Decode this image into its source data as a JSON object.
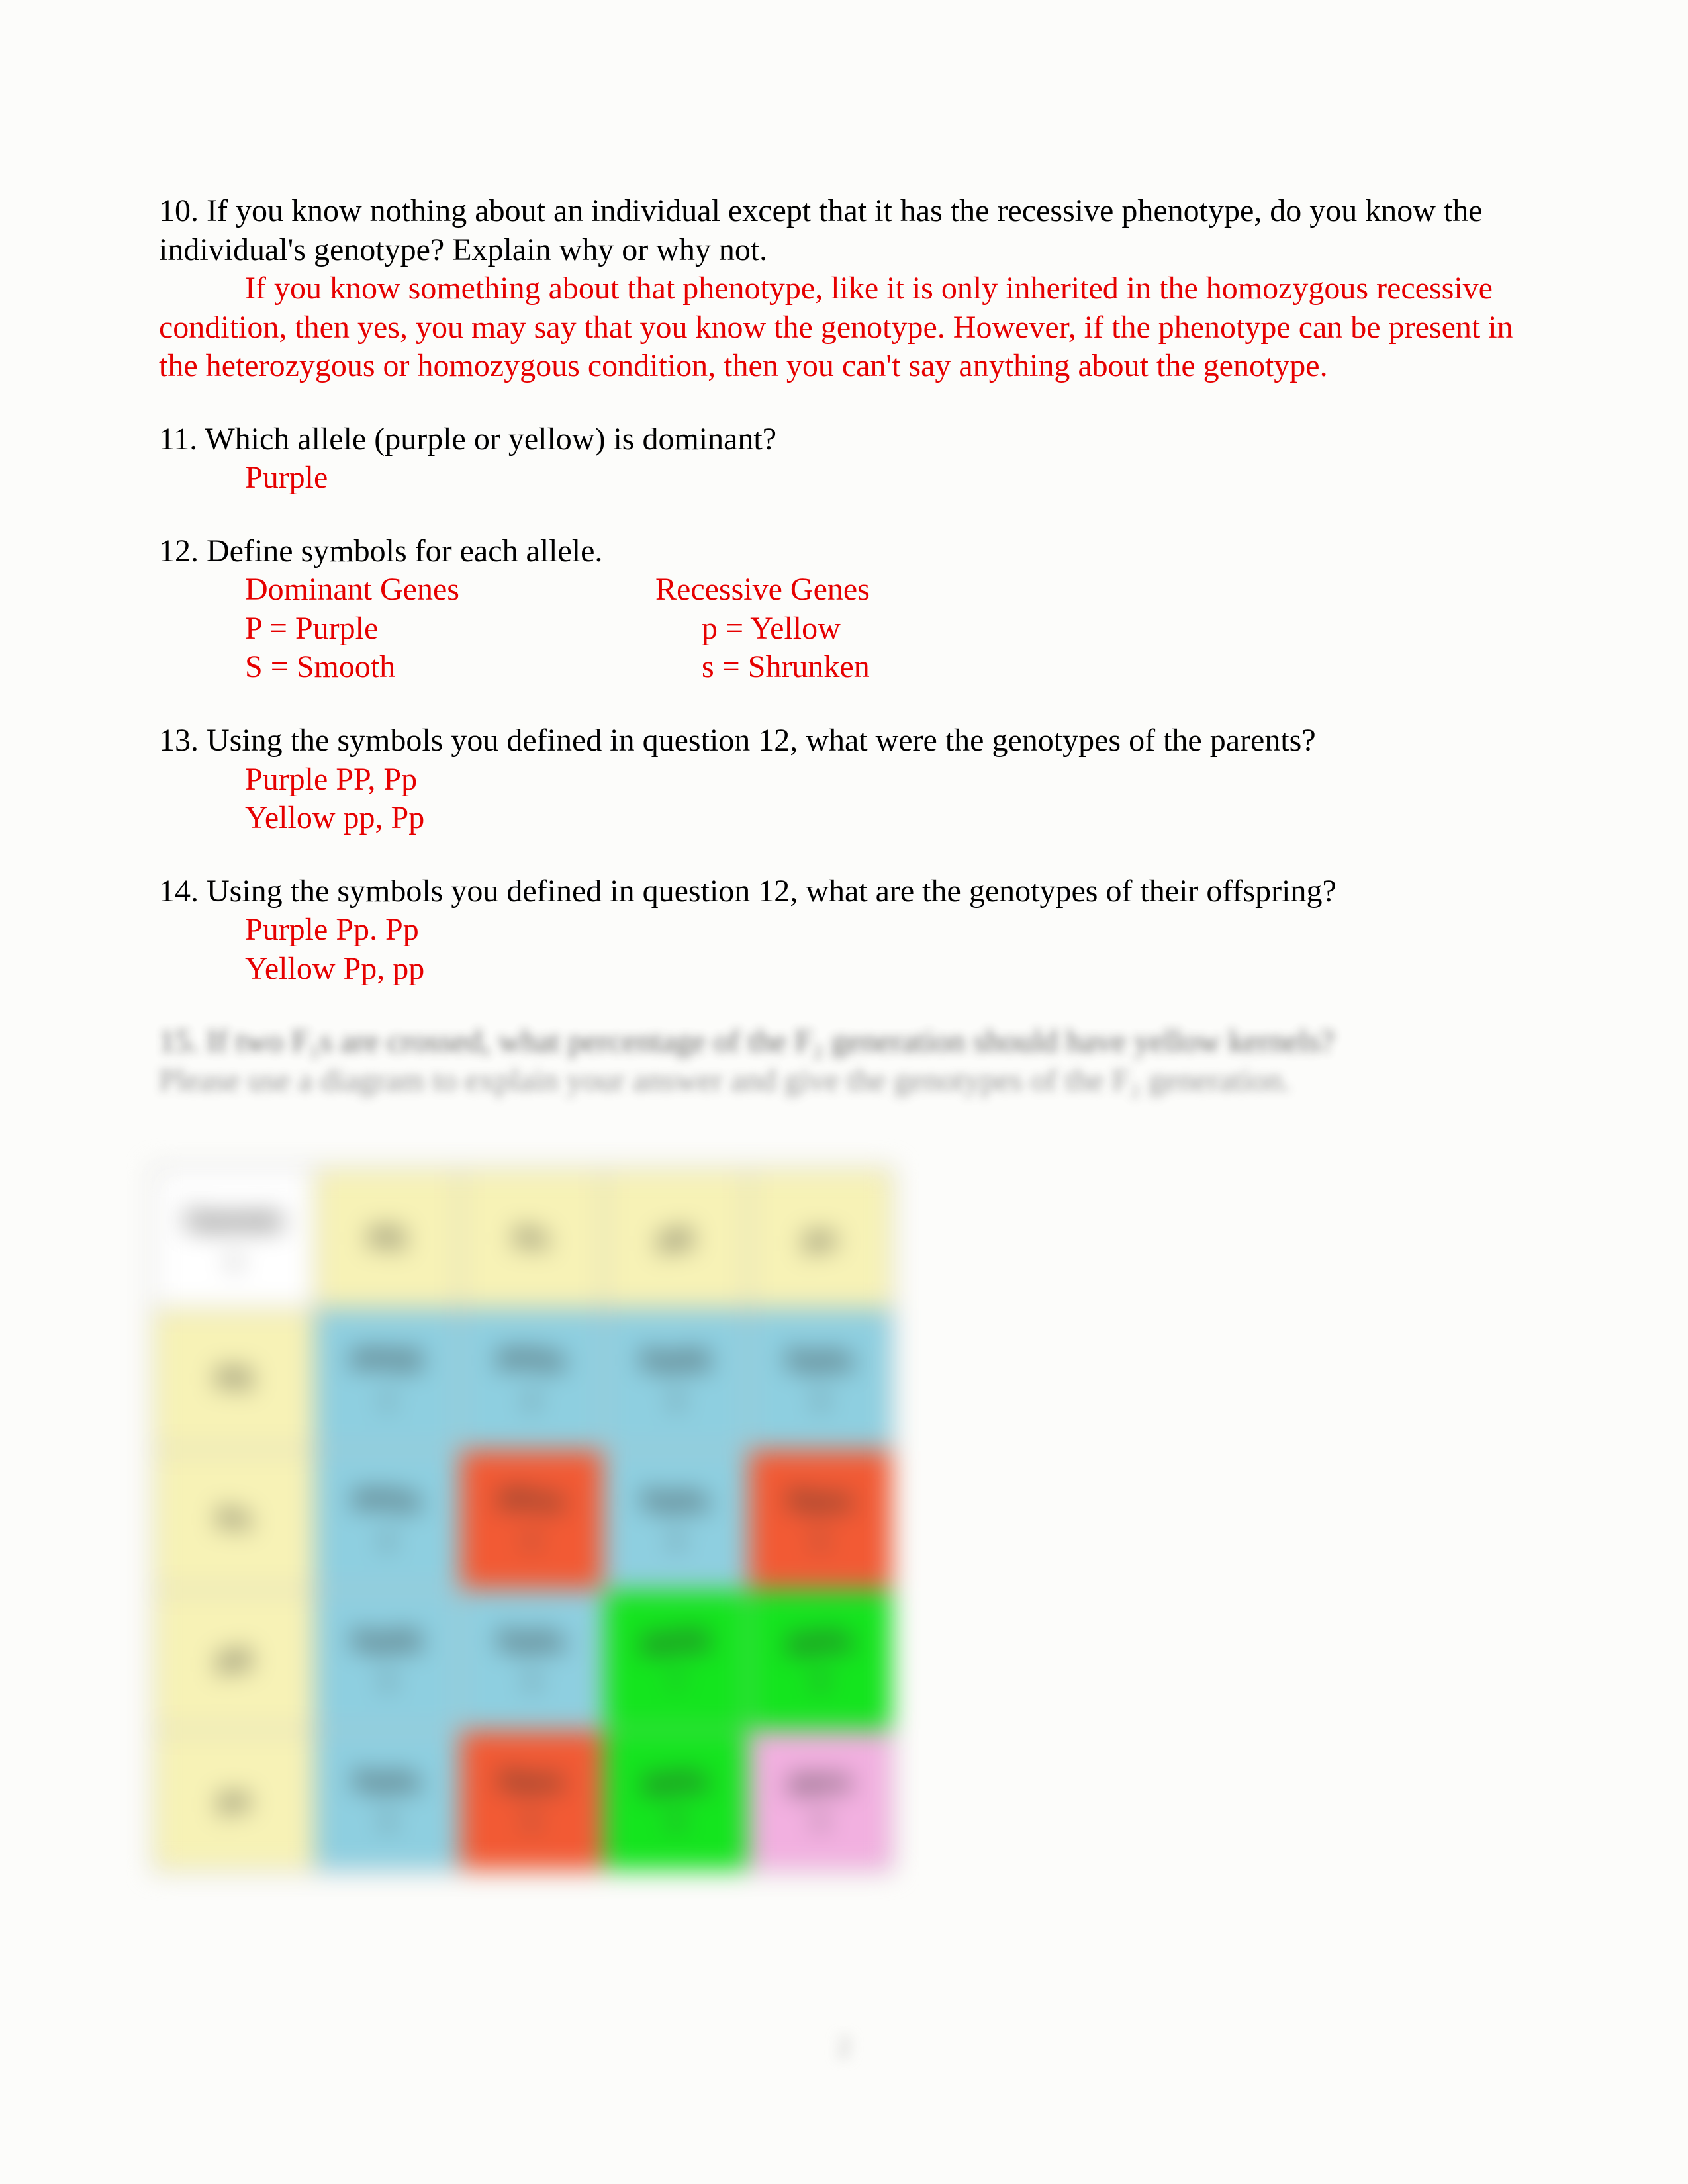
{
  "q10": {
    "text": "10.  If you know nothing about an individual except that it has the recessive phenotype, do you know the individual's genotype?  Explain why or why not.",
    "answer": "If you know something about that phenotype, like it is only inherited in the homozygous recessive condition, then yes, you may say that you know the genotype. However, if the phenotype can be present in the heterozygous or homozygous condition, then you can't say anything about the genotype."
  },
  "q11": {
    "text": "11.  Which allele (purple or yellow) is dominant?",
    "answer": "Purple"
  },
  "q12": {
    "text": "12.  Define symbols for each allele.",
    "domHeader": "Dominant Genes",
    "recHeader": "Recessive Genes",
    "dom1": "P = Purple",
    "dom2": "S = Smooth",
    "rec1": "p = Yellow",
    "rec2": "s = Shrunken"
  },
  "q13": {
    "text": "13.  Using the symbols you defined in question 12, what were the genotypes of the parents?",
    "a1": "Purple PP, Pp",
    "a2": "Yellow pp, Pp"
  },
  "q14": {
    "text": "14.  Using the symbols you defined in question 12, what are the genotypes of their offspring?",
    "a1": "Purple Pp. Pp",
    "a2": "Yellow Pp, pp"
  },
  "q15": {
    "line1": "15. If two F₁s are crossed, what percentage of the F₂ generation should have yellow kernels?",
    "line2": "Please use a diagram to explain your answer and give the genotypes of the F₂ generation."
  },
  "footer": "2",
  "punnett": {
    "colors": {
      "white": "#ffffff",
      "yellow": "#f7f2b6",
      "blue": "#8ecfe0",
      "red": "#f25a34",
      "green": "#14e51e",
      "pink": "#f2b0e0"
    },
    "header": {
      "label": "Gamete",
      "sub": "s"
    },
    "colHeads": [
      {
        "label": "PS",
        "sub": ""
      },
      {
        "label": "Ps",
        "sub": ""
      },
      {
        "label": "pS",
        "sub": ""
      },
      {
        "label": "ps",
        "sub": ""
      }
    ],
    "rows": [
      {
        "head": {
          "label": "PS",
          "sub": ""
        },
        "cells": [
          {
            "label": "PPSS",
            "sub": "1",
            "color": "blue"
          },
          {
            "label": "PPSs",
            "sub": "2",
            "color": "blue"
          },
          {
            "label": "PpSS",
            "sub": "3",
            "color": "blue"
          },
          {
            "label": "PpSs",
            "sub": "4",
            "color": "blue"
          }
        ]
      },
      {
        "head": {
          "label": "Ps",
          "sub": ""
        },
        "cells": [
          {
            "label": "PPSs",
            "sub": "2",
            "color": "blue"
          },
          {
            "label": "PPss",
            "sub": "5",
            "color": "red"
          },
          {
            "label": "PpSs",
            "sub": "4",
            "color": "blue"
          },
          {
            "label": "Ppss",
            "sub": "6",
            "color": "red"
          }
        ]
      },
      {
        "head": {
          "label": "pS",
          "sub": ""
        },
        "cells": [
          {
            "label": "PpSS",
            "sub": "3",
            "color": "blue"
          },
          {
            "label": "PpSs",
            "sub": "4",
            "color": "blue"
          },
          {
            "label": "ppSS",
            "sub": "7",
            "color": "green"
          },
          {
            "label": "ppSs",
            "sub": "8",
            "color": "green"
          }
        ]
      },
      {
        "head": {
          "label": "ps",
          "sub": ""
        },
        "cells": [
          {
            "label": "PpSs",
            "sub": "4",
            "color": "blue"
          },
          {
            "label": "Ppss",
            "sub": "6",
            "color": "red"
          },
          {
            "label": "ppSs",
            "sub": "8",
            "color": "green"
          },
          {
            "label": "ppss",
            "sub": "9",
            "color": "pink"
          }
        ]
      }
    ]
  }
}
